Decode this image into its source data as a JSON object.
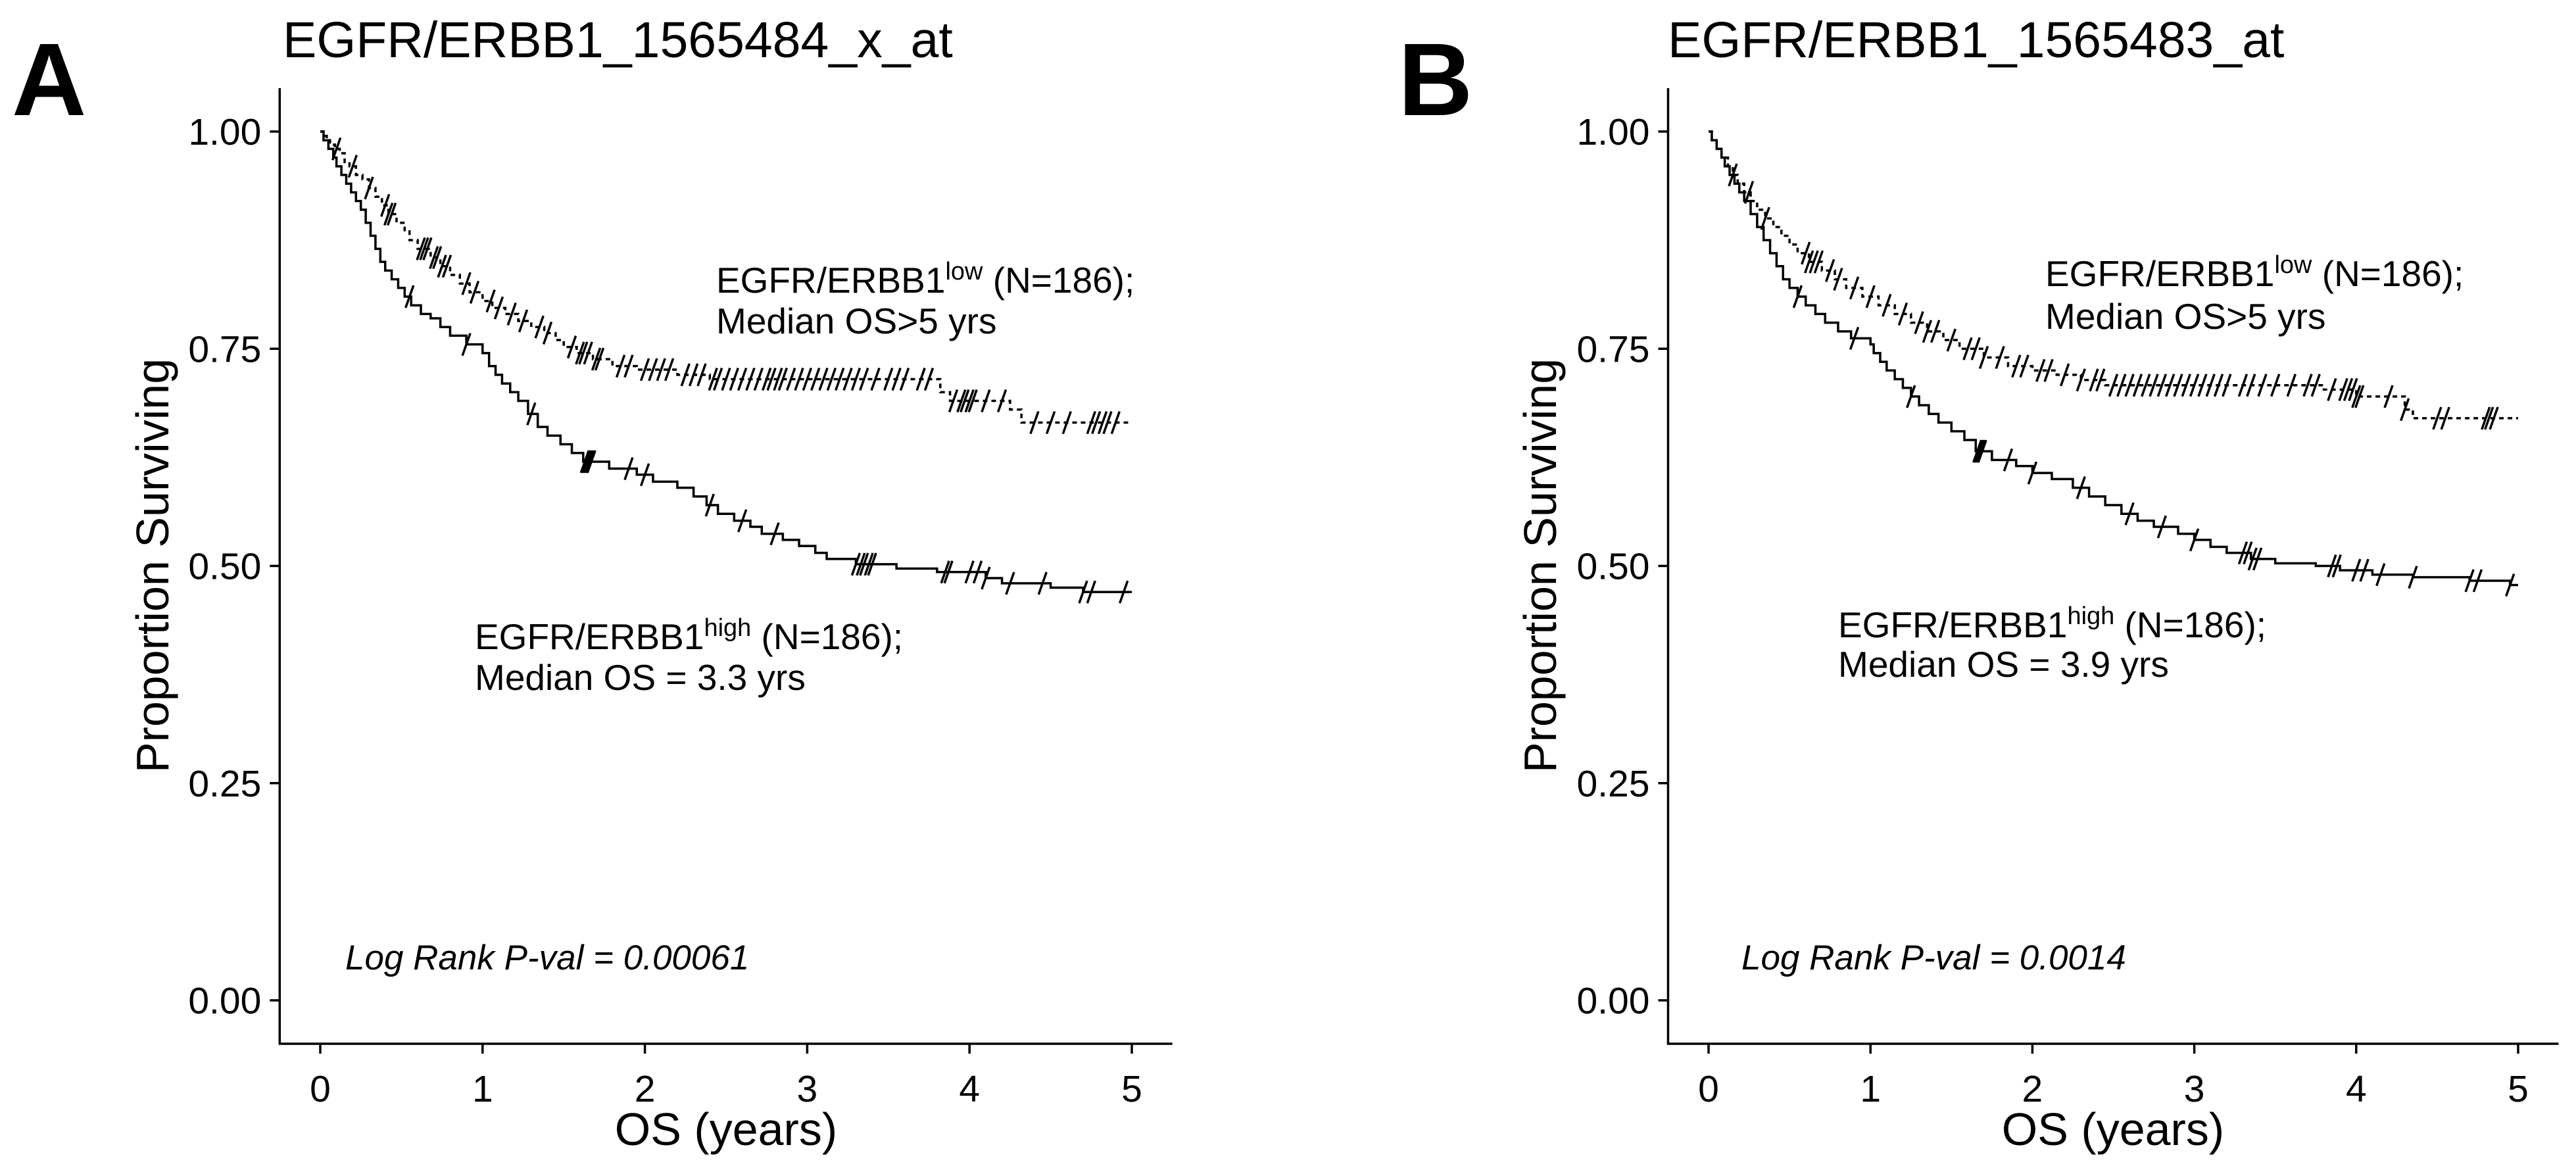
{
  "colors": {
    "ink": "#000000",
    "background": "#ffffff"
  },
  "chart_data": [
    {
      "type": "line",
      "panel_label": "A",
      "title": "EGFR/ERBB1_1565484_x_at",
      "xlabel": "OS (years)",
      "ylabel": "Proportion Surviving",
      "xlim": [
        0,
        5
      ],
      "ylim": [
        0,
        1
      ],
      "xticks": [
        0,
        1,
        2,
        3,
        4,
        5
      ],
      "xtick_labels": [
        "0",
        "1",
        "2",
        "3",
        "4",
        "5"
      ],
      "yticks": [
        0,
        0.25,
        0.5,
        0.75,
        1
      ],
      "ytick_labels": [
        "0.00",
        "0.25",
        "0.50",
        "0.75",
        "1.00"
      ],
      "pvalue_text": "Log Rank P-val = 0.00061",
      "series": [
        {
          "label": {
            "main": "EGFR/ERBB1",
            "sup": "low",
            "rest": " (N=186);"
          },
          "median_text": "Median OS>5 yrs",
          "dashed": true,
          "steps": [
            [
              0,
              1.0
            ],
            [
              0.02,
              0.995
            ],
            [
              0.04,
              0.99
            ],
            [
              0.06,
              0.985
            ],
            [
              0.09,
              0.98
            ],
            [
              0.12,
              0.975
            ],
            [
              0.15,
              0.965
            ],
            [
              0.18,
              0.96
            ],
            [
              0.22,
              0.95
            ],
            [
              0.26,
              0.945
            ],
            [
              0.3,
              0.935
            ],
            [
              0.34,
              0.925
            ],
            [
              0.38,
              0.915
            ],
            [
              0.42,
              0.905
            ],
            [
              0.47,
              0.895
            ],
            [
              0.52,
              0.885
            ],
            [
              0.55,
              0.875
            ],
            [
              0.6,
              0.865
            ],
            [
              0.68,
              0.855
            ],
            [
              0.74,
              0.845
            ],
            [
              0.8,
              0.835
            ],
            [
              0.86,
              0.825
            ],
            [
              0.92,
              0.815
            ],
            [
              1.0,
              0.805
            ],
            [
              1.06,
              0.797
            ],
            [
              1.14,
              0.79
            ],
            [
              1.22,
              0.782
            ],
            [
              1.3,
              0.775
            ],
            [
              1.38,
              0.768
            ],
            [
              1.45,
              0.76
            ],
            [
              1.5,
              0.752
            ],
            [
              1.58,
              0.745
            ],
            [
              1.68,
              0.738
            ],
            [
              1.8,
              0.73
            ],
            [
              1.95,
              0.726
            ],
            [
              2.2,
              0.72
            ],
            [
              2.4,
              0.715
            ],
            [
              3.82,
              0.7
            ],
            [
              3.88,
              0.69
            ],
            [
              4.25,
              0.68
            ],
            [
              4.32,
              0.665
            ],
            [
              5.0,
              0.665
            ]
          ],
          "censored": [
            0.1,
            0.2,
            0.3,
            0.4,
            0.42,
            0.44,
            0.62,
            0.64,
            0.66,
            0.7,
            0.72,
            0.75,
            0.78,
            0.9,
            0.95,
            1.05,
            1.1,
            1.18,
            1.25,
            1.35,
            1.4,
            1.55,
            1.6,
            1.62,
            1.65,
            1.7,
            1.72,
            1.85,
            1.9,
            2.0,
            2.05,
            2.1,
            2.15,
            2.25,
            2.3,
            2.35,
            2.42,
            2.45,
            2.5,
            2.55,
            2.6,
            2.65,
            2.7,
            2.75,
            2.78,
            2.82,
            2.85,
            2.9,
            2.95,
            3.0,
            3.05,
            3.1,
            3.15,
            3.2,
            3.25,
            3.3,
            3.35,
            3.42,
            3.5,
            3.55,
            3.6,
            3.7,
            3.75,
            3.9,
            3.95,
            3.97,
            4.0,
            4.02,
            4.1,
            4.2,
            4.4,
            4.5,
            4.6,
            4.75,
            4.78,
            4.82,
            4.85,
            4.9
          ]
        },
        {
          "label": {
            "main": "EGFR/ERBB1",
            "sup": "high",
            "rest": " (N=186);"
          },
          "median_text": "Median OS = 3.3 yrs",
          "dashed": false,
          "steps": [
            [
              0,
              1.0
            ],
            [
              0.02,
              0.99
            ],
            [
              0.05,
              0.98
            ],
            [
              0.08,
              0.97
            ],
            [
              0.1,
              0.96
            ],
            [
              0.13,
              0.95
            ],
            [
              0.16,
              0.94
            ],
            [
              0.19,
              0.93
            ],
            [
              0.22,
              0.92
            ],
            [
              0.25,
              0.91
            ],
            [
              0.28,
              0.895
            ],
            [
              0.31,
              0.88
            ],
            [
              0.34,
              0.865
            ],
            [
              0.37,
              0.85
            ],
            [
              0.4,
              0.84
            ],
            [
              0.44,
              0.83
            ],
            [
              0.48,
              0.82
            ],
            [
              0.52,
              0.81
            ],
            [
              0.56,
              0.8
            ],
            [
              0.62,
              0.79
            ],
            [
              0.68,
              0.785
            ],
            [
              0.74,
              0.775
            ],
            [
              0.8,
              0.765
            ],
            [
              0.9,
              0.755
            ],
            [
              1.0,
              0.745
            ],
            [
              1.04,
              0.73
            ],
            [
              1.08,
              0.72
            ],
            [
              1.12,
              0.71
            ],
            [
              1.17,
              0.7
            ],
            [
              1.22,
              0.69
            ],
            [
              1.28,
              0.675
            ],
            [
              1.34,
              0.66
            ],
            [
              1.4,
              0.65
            ],
            [
              1.48,
              0.64
            ],
            [
              1.55,
              0.63
            ],
            [
              1.62,
              0.62
            ],
            [
              1.78,
              0.612
            ],
            [
              1.95,
              0.605
            ],
            [
              2.05,
              0.597
            ],
            [
              2.2,
              0.59
            ],
            [
              2.3,
              0.58
            ],
            [
              2.38,
              0.57
            ],
            [
              2.45,
              0.56
            ],
            [
              2.55,
              0.552
            ],
            [
              2.65,
              0.545
            ],
            [
              2.72,
              0.537
            ],
            [
              2.85,
              0.53
            ],
            [
              2.95,
              0.523
            ],
            [
              3.05,
              0.515
            ],
            [
              3.12,
              0.508
            ],
            [
              3.3,
              0.502
            ],
            [
              3.55,
              0.497
            ],
            [
              3.8,
              0.493
            ],
            [
              4.1,
              0.486
            ],
            [
              4.2,
              0.48
            ],
            [
              4.5,
              0.475
            ],
            [
              4.7,
              0.47
            ],
            [
              5.0,
              0.47
            ]
          ],
          "censored": [
            0.55,
            0.9,
            1.3,
            1.63,
            1.64,
            1.65,
            1.66,
            1.67,
            1.9,
            2.0,
            2.4,
            2.6,
            2.8,
            3.3,
            3.33,
            3.35,
            3.38,
            3.4,
            3.85,
            3.87,
            4.0,
            4.05,
            4.1,
            4.25,
            4.45,
            4.7,
            4.75,
            4.95
          ]
        }
      ]
    },
    {
      "type": "line",
      "panel_label": "B",
      "title": "EGFR/ERBB1_1565483_at",
      "xlabel": "OS (years)",
      "ylabel": "Proportion Surviving",
      "xlim": [
        0,
        5
      ],
      "ylim": [
        0,
        1
      ],
      "xticks": [
        0,
        1,
        2,
        3,
        4,
        5
      ],
      "xtick_labels": [
        "0",
        "1",
        "2",
        "3",
        "4",
        "5"
      ],
      "yticks": [
        0,
        0.25,
        0.5,
        0.75,
        1
      ],
      "ytick_labels": [
        "0.00",
        "0.25",
        "0.50",
        "0.75",
        "1.00"
      ],
      "pvalue_text": "Log Rank P-val = 0.0014",
      "series": [
        {
          "label": {
            "main": "EGFR/ERBB1",
            "sup": "low",
            "rest": " (N=186);"
          },
          "median_text": "Median OS>5 yrs",
          "dashed": true,
          "steps": [
            [
              0,
              1.0
            ],
            [
              0.02,
              0.99
            ],
            [
              0.05,
              0.98
            ],
            [
              0.08,
              0.97
            ],
            [
              0.12,
              0.96
            ],
            [
              0.15,
              0.95
            ],
            [
              0.18,
              0.94
            ],
            [
              0.22,
              0.93
            ],
            [
              0.26,
              0.92
            ],
            [
              0.3,
              0.91
            ],
            [
              0.35,
              0.9
            ],
            [
              0.4,
              0.89
            ],
            [
              0.45,
              0.88
            ],
            [
              0.5,
              0.87
            ],
            [
              0.55,
              0.86
            ],
            [
              0.62,
              0.85
            ],
            [
              0.7,
              0.84
            ],
            [
              0.78,
              0.83
            ],
            [
              0.85,
              0.82
            ],
            [
              0.95,
              0.81
            ],
            [
              1.05,
              0.8
            ],
            [
              1.15,
              0.79
            ],
            [
              1.25,
              0.78
            ],
            [
              1.35,
              0.77
            ],
            [
              1.45,
              0.76
            ],
            [
              1.55,
              0.75
            ],
            [
              1.7,
              0.74
            ],
            [
              1.85,
              0.73
            ],
            [
              2.0,
              0.725
            ],
            [
              2.15,
              0.72
            ],
            [
              2.3,
              0.714
            ],
            [
              2.45,
              0.708
            ],
            [
              3.8,
              0.703
            ],
            [
              4.0,
              0.695
            ],
            [
              4.3,
              0.68
            ],
            [
              4.35,
              0.67
            ],
            [
              5.0,
              0.67
            ]
          ],
          "censored": [
            0.15,
            0.25,
            0.35,
            0.6,
            0.62,
            0.65,
            0.68,
            0.75,
            0.8,
            0.9,
            1.0,
            1.1,
            1.2,
            1.3,
            1.35,
            1.4,
            1.5,
            1.6,
            1.65,
            1.7,
            1.8,
            1.9,
            1.95,
            2.05,
            2.1,
            2.2,
            2.3,
            2.38,
            2.42,
            2.5,
            2.55,
            2.6,
            2.65,
            2.7,
            2.75,
            2.8,
            2.85,
            2.9,
            2.95,
            3.0,
            3.05,
            3.1,
            3.15,
            3.2,
            3.3,
            3.35,
            3.42,
            3.5,
            3.6,
            3.7,
            3.75,
            3.85,
            3.92,
            3.95,
            3.98,
            4.0,
            4.02,
            4.2,
            4.3,
            4.5,
            4.55,
            4.8,
            4.82,
            4.85
          ]
        },
        {
          "label": {
            "main": "EGFR/ERBB1",
            "sup": "high",
            "rest": " (N=186);"
          },
          "median_text": "Median OS = 3.9 yrs",
          "dashed": false,
          "steps": [
            [
              0,
              1.0
            ],
            [
              0.02,
              0.99
            ],
            [
              0.05,
              0.98
            ],
            [
              0.08,
              0.97
            ],
            [
              0.1,
              0.96
            ],
            [
              0.13,
              0.95
            ],
            [
              0.16,
              0.94
            ],
            [
              0.19,
              0.93
            ],
            [
              0.22,
              0.92
            ],
            [
              0.26,
              0.905
            ],
            [
              0.3,
              0.89
            ],
            [
              0.34,
              0.875
            ],
            [
              0.38,
              0.86
            ],
            [
              0.42,
              0.845
            ],
            [
              0.46,
              0.83
            ],
            [
              0.5,
              0.82
            ],
            [
              0.55,
              0.81
            ],
            [
              0.6,
              0.8
            ],
            [
              0.66,
              0.79
            ],
            [
              0.72,
              0.78
            ],
            [
              0.8,
              0.77
            ],
            [
              0.88,
              0.762
            ],
            [
              1.0,
              0.755
            ],
            [
              1.02,
              0.745
            ],
            [
              1.06,
              0.735
            ],
            [
              1.1,
              0.725
            ],
            [
              1.15,
              0.715
            ],
            [
              1.2,
              0.705
            ],
            [
              1.25,
              0.695
            ],
            [
              1.3,
              0.685
            ],
            [
              1.36,
              0.675
            ],
            [
              1.42,
              0.665
            ],
            [
              1.5,
              0.655
            ],
            [
              1.58,
              0.645
            ],
            [
              1.65,
              0.632
            ],
            [
              1.75,
              0.622
            ],
            [
              1.9,
              0.615
            ],
            [
              2.0,
              0.607
            ],
            [
              2.12,
              0.6
            ],
            [
              2.25,
              0.59
            ],
            [
              2.35,
              0.58
            ],
            [
              2.45,
              0.57
            ],
            [
              2.55,
              0.56
            ],
            [
              2.65,
              0.552
            ],
            [
              2.75,
              0.545
            ],
            [
              2.9,
              0.537
            ],
            [
              3.0,
              0.53
            ],
            [
              3.1,
              0.522
            ],
            [
              3.2,
              0.515
            ],
            [
              3.35,
              0.508
            ],
            [
              3.5,
              0.503
            ],
            [
              3.75,
              0.5
            ],
            [
              3.9,
              0.495
            ],
            [
              4.1,
              0.49
            ],
            [
              4.35,
              0.487
            ],
            [
              4.7,
              0.483
            ],
            [
              4.95,
              0.478
            ],
            [
              5.0,
              0.478
            ]
          ],
          "censored": [
            0.55,
            0.9,
            1.25,
            1.66,
            1.67,
            1.68,
            1.69,
            1.85,
            2.0,
            2.3,
            2.6,
            2.8,
            3.0,
            3.3,
            3.33,
            3.36,
            3.39,
            3.85,
            3.88,
            4.0,
            4.05,
            4.15,
            4.35,
            4.7,
            4.75,
            4.95
          ]
        }
      ]
    }
  ]
}
